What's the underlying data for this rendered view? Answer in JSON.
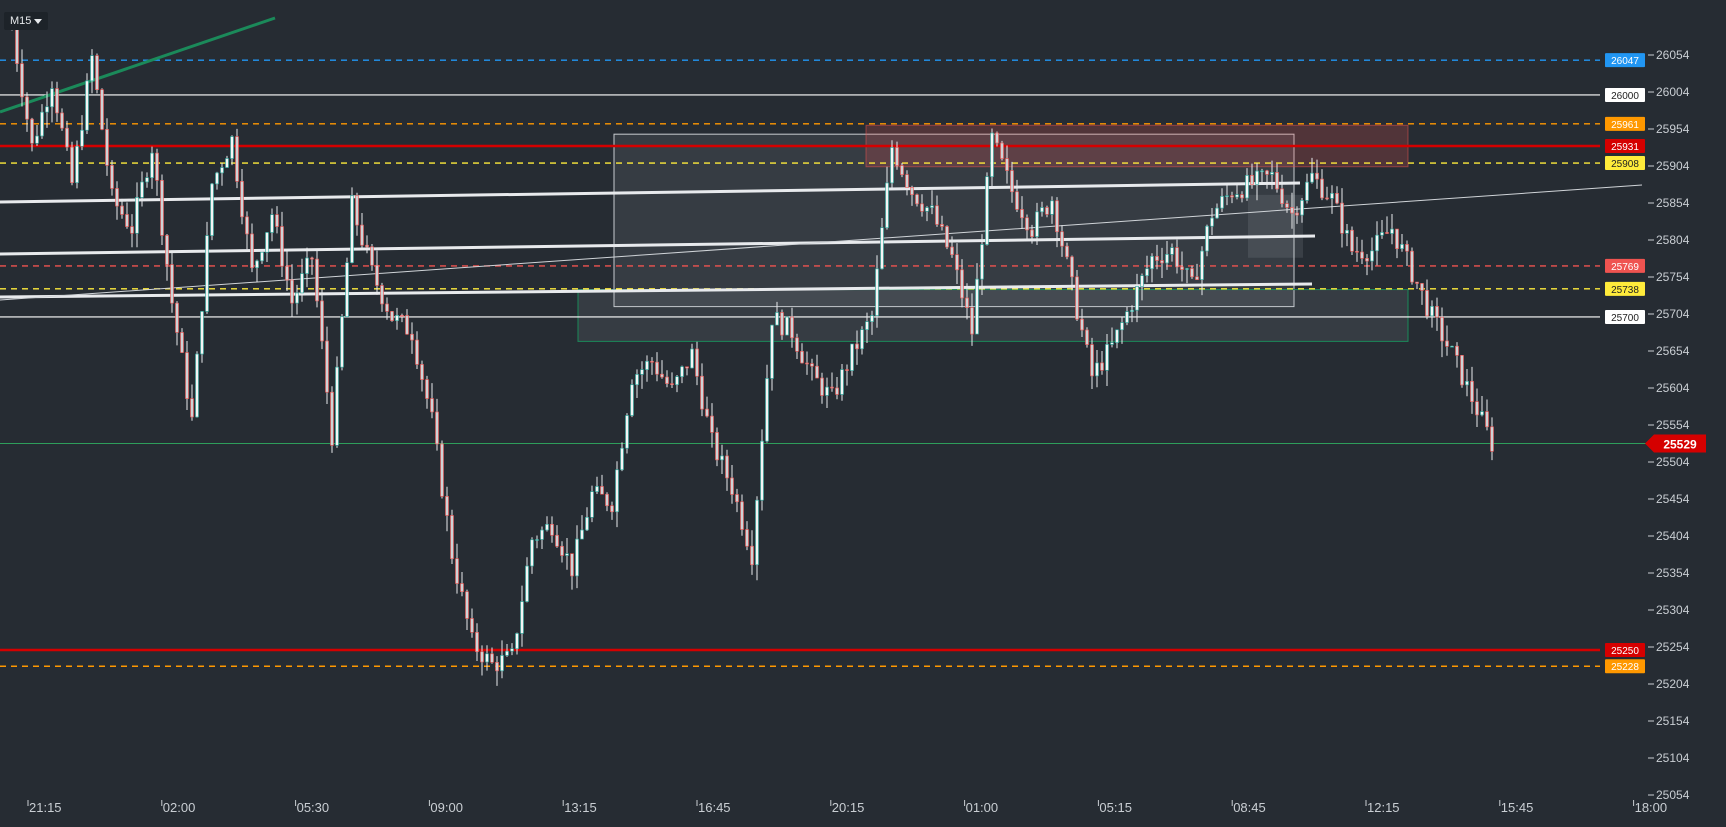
{
  "toolbar": {
    "timeframe": "M15"
  },
  "colors": {
    "background": "#262c33",
    "axis_text": "#c9ced3",
    "bull": "#26a69a",
    "bear": "#ef5350",
    "wick": "#e8eaed",
    "blue": "#2196f3",
    "orange": "#ff9800",
    "yellow": "#ffeb3b",
    "red": "#d50000",
    "white": "#ffffff",
    "green": "#1b8a5a"
  },
  "chart_data": {
    "type": "candlestick",
    "symbol_timeframe": "M15",
    "ylim": [
      25054,
      26104
    ],
    "y_ticks": [
      26054,
      26004,
      25954,
      25904,
      25854,
      25804,
      25754,
      25704,
      25654,
      25604,
      25554,
      25504,
      25454,
      25404,
      25354,
      25304,
      25254,
      25204,
      25154,
      25104,
      25054
    ],
    "x_ticks": [
      "21:15",
      "02:00",
      "05:30",
      "09:00",
      "13:15",
      "16:45",
      "20:15",
      "01:00",
      "05:15",
      "08:45",
      "12:15",
      "15:45",
      "18:00"
    ],
    "price_path": [
      [
        0,
        26090
      ],
      [
        4,
        25930
      ],
      [
        8,
        26020
      ],
      [
        12,
        25880
      ],
      [
        16,
        26050
      ],
      [
        20,
        25860
      ],
      [
        24,
        25820
      ],
      [
        28,
        25930
      ],
      [
        32,
        25720
      ],
      [
        36,
        25560
      ],
      [
        40,
        25880
      ],
      [
        44,
        25940
      ],
      [
        48,
        25760
      ],
      [
        52,
        25840
      ],
      [
        56,
        25720
      ],
      [
        60,
        25780
      ],
      [
        64,
        25540
      ],
      [
        68,
        25850
      ],
      [
        72,
        25760
      ],
      [
        76,
        25700
      ],
      [
        80,
        25680
      ],
      [
        84,
        25560
      ],
      [
        88,
        25380
      ],
      [
        92,
        25260
      ],
      [
        96,
        25230
      ],
      [
        100,
        25240
      ],
      [
        104,
        25400
      ],
      [
        108,
        25420
      ],
      [
        112,
        25360
      ],
      [
        116,
        25460
      ],
      [
        120,
        25450
      ],
      [
        124,
        25620
      ],
      [
        128,
        25640
      ],
      [
        132,
        25600
      ],
      [
        136,
        25650
      ],
      [
        140,
        25530
      ],
      [
        144,
        25470
      ],
      [
        148,
        25380
      ],
      [
        152,
        25700
      ],
      [
        156,
        25680
      ],
      [
        160,
        25620
      ],
      [
        164,
        25590
      ],
      [
        168,
        25650
      ],
      [
        172,
        25700
      ],
      [
        176,
        25930
      ],
      [
        180,
        25870
      ],
      [
        184,
        25840
      ],
      [
        188,
        25780
      ],
      [
        192,
        25680
      ],
      [
        196,
        25940
      ],
      [
        200,
        25870
      ],
      [
        204,
        25820
      ],
      [
        208,
        25860
      ],
      [
        212,
        25740
      ],
      [
        216,
        25620
      ],
      [
        220,
        25660
      ],
      [
        224,
        25720
      ],
      [
        228,
        25780
      ],
      [
        232,
        25790
      ],
      [
        236,
        25740
      ],
      [
        240,
        25840
      ],
      [
        244,
        25870
      ],
      [
        248,
        25880
      ],
      [
        252,
        25890
      ],
      [
        256,
        25840
      ],
      [
        260,
        25890
      ],
      [
        264,
        25860
      ],
      [
        268,
        25790
      ],
      [
        272,
        25790
      ],
      [
        276,
        25820
      ],
      [
        280,
        25760
      ],
      [
        284,
        25700
      ],
      [
        288,
        25650
      ],
      [
        292,
        25590
      ],
      [
        296,
        25529
      ]
    ],
    "horizontal_levels": [
      {
        "price": 26047,
        "label": "26047",
        "color": "#2196f3",
        "style": "dashed"
      },
      {
        "price": 26000,
        "label": "26000",
        "color": "#ffffff",
        "style": "solid"
      },
      {
        "price": 25961,
        "label": "25961",
        "color": "#ff9800",
        "style": "dashed"
      },
      {
        "price": 25931,
        "label": "25931",
        "color": "#d50000",
        "style": "solid"
      },
      {
        "price": 25908,
        "label": "25908",
        "color": "#ffeb3b",
        "style": "dashed"
      },
      {
        "price": 25769,
        "label": "25769",
        "color": "#ef5350",
        "style": "dashed"
      },
      {
        "price": 25738,
        "label": "25738",
        "color": "#ffeb3b",
        "style": "dashed"
      },
      {
        "price": 25700,
        "label": "25700",
        "color": "#ffffff",
        "style": "solid"
      },
      {
        "price": 25250,
        "label": "25250",
        "color": "#d50000",
        "style": "solid"
      },
      {
        "price": 25228,
        "label": "25228",
        "color": "#ff9800",
        "style": "dashed"
      }
    ],
    "current_price": {
      "price": 25529,
      "label": "25529",
      "color": "#d50000"
    }
  }
}
